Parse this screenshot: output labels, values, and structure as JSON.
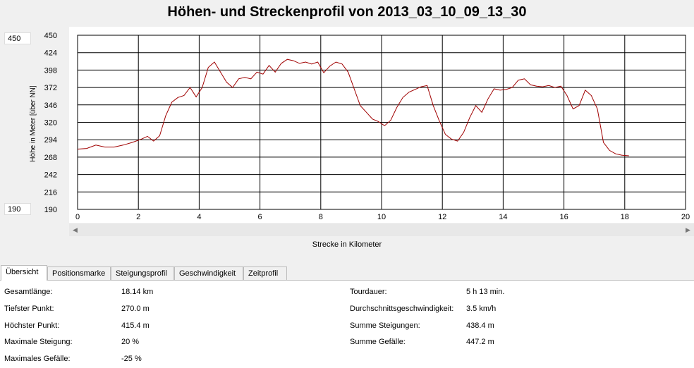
{
  "title": "Höhen- und Streckenprofil von 2013_03_10_09_13_30",
  "range": {
    "max": "450",
    "min": "190"
  },
  "chart_data": {
    "type": "line",
    "xlabel": "Strecke in Kilometer",
    "ylabel": "Höhe in Meter [über NN]",
    "xlim": [
      0,
      20
    ],
    "ylim": [
      190,
      450
    ],
    "xticks": [
      0,
      2,
      4,
      6,
      8,
      10,
      12,
      14,
      16,
      18,
      20
    ],
    "yticks": [
      190,
      216,
      242,
      268,
      294,
      320,
      346,
      372,
      398,
      424,
      450
    ],
    "grid": true,
    "color": "#a00000",
    "series": [
      {
        "x": [
          0,
          0.3,
          0.6,
          0.9,
          1.2,
          1.5,
          1.8,
          2.1,
          2.3,
          2.5,
          2.7,
          2.9,
          3.1,
          3.3,
          3.5,
          3.7,
          3.9,
          4.1,
          4.3,
          4.5,
          4.7,
          4.9,
          5.1,
          5.3,
          5.5,
          5.7,
          5.9,
          6.1,
          6.3,
          6.5,
          6.7,
          6.9,
          7.1,
          7.3,
          7.5,
          7.7,
          7.9,
          8.1,
          8.3,
          8.5,
          8.7,
          8.9,
          9.1,
          9.3,
          9.5,
          9.7,
          9.9,
          10.1,
          10.3,
          10.5,
          10.7,
          10.9,
          11.1,
          11.3,
          11.5,
          11.7,
          11.9,
          12.1,
          12.3,
          12.5,
          12.7,
          12.9,
          13.1,
          13.3,
          13.5,
          13.7,
          13.9,
          14.1,
          14.3,
          14.5,
          14.7,
          14.9,
          15.1,
          15.3,
          15.5,
          15.7,
          15.9,
          16.1,
          16.3,
          16.5,
          16.7,
          16.9,
          17.1,
          17.3,
          17.5,
          17.7,
          17.9,
          18.14
        ],
        "y": [
          280,
          281,
          286,
          283,
          283,
          286,
          290,
          295,
          299,
          292,
          300,
          330,
          350,
          357,
          360,
          372,
          358,
          372,
          402,
          410,
          395,
          380,
          372,
          385,
          387,
          385,
          395,
          392,
          405,
          395,
          408,
          414,
          412,
          408,
          410,
          407,
          410,
          394,
          404,
          410,
          407,
          395,
          370,
          345,
          335,
          325,
          321,
          315,
          323,
          342,
          357,
          365,
          369,
          373,
          375,
          345,
          322,
          302,
          295,
          292,
          305,
          327,
          345,
          335,
          355,
          370,
          368,
          369,
          372,
          383,
          385,
          376,
          374,
          373,
          375,
          372,
          374,
          360,
          340,
          345,
          368,
          360,
          340,
          290,
          278,
          273,
          271,
          270
        ]
      }
    ]
  },
  "tabs": [
    {
      "label": "Übersicht",
      "active": true
    },
    {
      "label": "Positionsmarke"
    },
    {
      "label": "Steigungsprofil"
    },
    {
      "label": "Geschwindigkeit"
    },
    {
      "label": "Zeitprofil"
    }
  ],
  "overview": {
    "left": [
      {
        "label": "Gesamtlänge:",
        "value": "18.14 km"
      },
      {
        "label": "Tiefster Punkt:",
        "value": "270.0 m"
      },
      {
        "label": "Höchster Punkt:",
        "value": "415.4 m"
      },
      {
        "label": "Maximale Steigung:",
        "value": "20 %"
      },
      {
        "label": "Maximales Gefälle:",
        "value": "-25 %"
      }
    ],
    "right": [
      {
        "label": "Tourdauer:",
        "value": "5 h 13 min."
      },
      {
        "label": "Durchschnittsgeschwindigkeit:",
        "value": "3.5 km/h"
      },
      {
        "label": "Summe Steigungen:",
        "value": "438.4 m"
      },
      {
        "label": "Summe Gefälle:",
        "value": "447.2 m"
      }
    ]
  }
}
